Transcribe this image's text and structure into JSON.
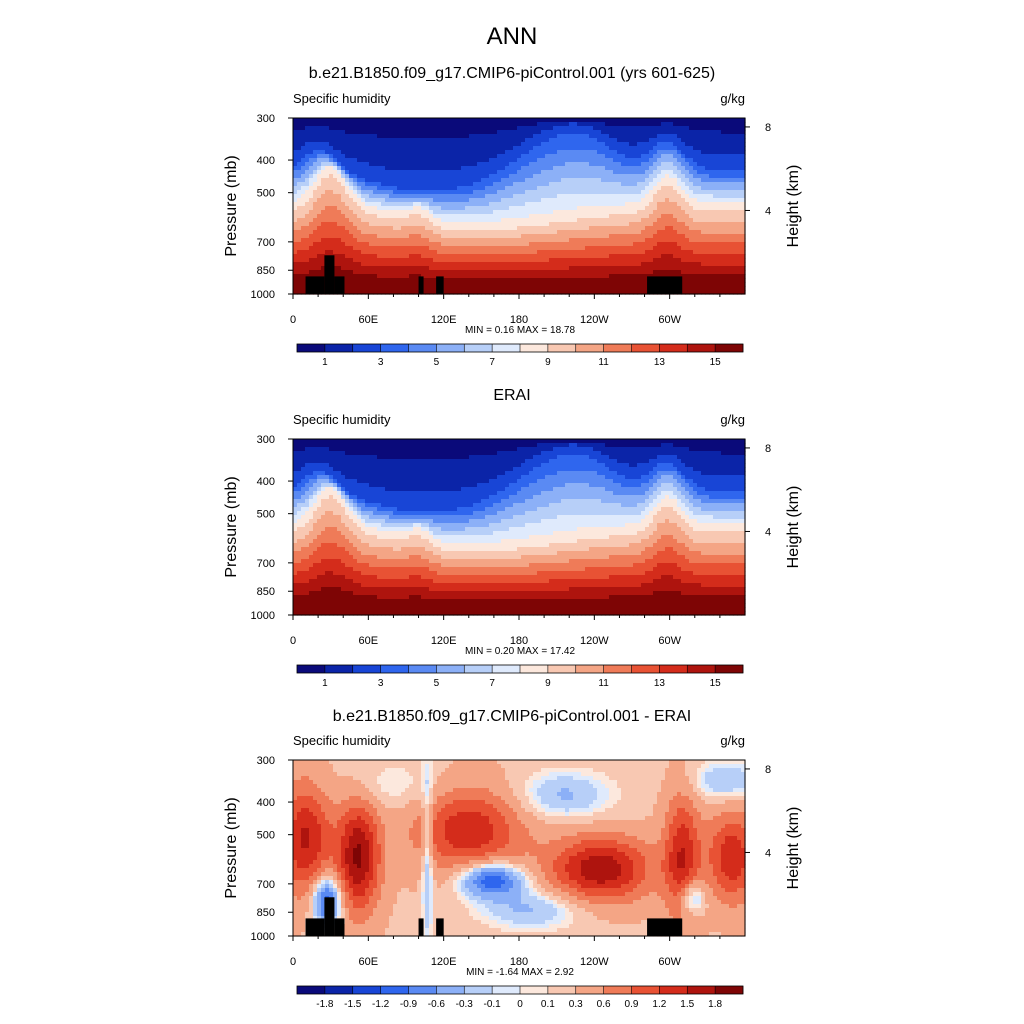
{
  "figure": {
    "title": "ANN"
  },
  "chart_data": [
    {
      "type": "heatmap",
      "panel": "model",
      "title": "b.e21.B1850.f09_g17.CMIP6-piControl.001 (yrs 601-625)",
      "left_label": "Specific humidity",
      "right_label": "g/kg",
      "ylabel": "Pressure (mb)",
      "ylabel_right": "Height (km)",
      "x_ticks": [
        "0",
        "60E",
        "120E",
        "180",
        "120W",
        "60W"
      ],
      "x_tick_values": [
        0,
        60,
        120,
        180,
        240,
        300
      ],
      "xlim": [
        0,
        360
      ],
      "y_ticks": [
        "300",
        "400",
        "500",
        "700",
        "850",
        "1000"
      ],
      "y_tick_values": [
        300,
        400,
        500,
        700,
        850,
        1000
      ],
      "ylim": [
        1000,
        300
      ],
      "y_scale": "log",
      "height_ticks": [
        "8",
        "4"
      ],
      "height_tick_values": [
        8,
        4
      ],
      "min_text": "MIN =   0.16  MAX =  18.78",
      "min": 0.16,
      "max": 18.78,
      "colorbar": {
        "labels": [
          "1",
          "3",
          "5",
          "7",
          "9",
          "11",
          "13",
          "15"
        ],
        "label_values": [
          1,
          3,
          5,
          7,
          9,
          11,
          13,
          15
        ],
        "levels": [
          1,
          2,
          3,
          4,
          5,
          6,
          7,
          8,
          9,
          10,
          11,
          12,
          13,
          14,
          15
        ],
        "colors": [
          "#0a0a7a",
          "#0b24a8",
          "#1845d6",
          "#2f66ee",
          "#5a8af3",
          "#8cb0f7",
          "#b7cff8",
          "#dfeafc",
          "#fce8dd",
          "#f8c8b2",
          "#f4a585",
          "#ef7b58",
          "#e85234",
          "#d42c1b",
          "#ae140e",
          "#7e0505"
        ]
      },
      "topography": true
    },
    {
      "type": "heatmap",
      "panel": "obs",
      "title": "ERAI",
      "left_label": "Specific humidity",
      "right_label": "g/kg",
      "ylabel": "Pressure (mb)",
      "ylabel_right": "Height (km)",
      "x_ticks": [
        "0",
        "60E",
        "120E",
        "180",
        "120W",
        "60W"
      ],
      "x_tick_values": [
        0,
        60,
        120,
        180,
        240,
        300
      ],
      "xlim": [
        0,
        360
      ],
      "y_ticks": [
        "300",
        "400",
        "500",
        "700",
        "850",
        "1000"
      ],
      "y_tick_values": [
        300,
        400,
        500,
        700,
        850,
        1000
      ],
      "ylim": [
        1000,
        300
      ],
      "y_scale": "log",
      "height_ticks": [
        "8",
        "4"
      ],
      "height_tick_values": [
        8,
        4
      ],
      "min_text": "MIN =   0.20  MAX =  17.42",
      "min": 0.2,
      "max": 17.42,
      "colorbar": {
        "labels": [
          "1",
          "3",
          "5",
          "7",
          "9",
          "11",
          "13",
          "15"
        ],
        "label_values": [
          1,
          3,
          5,
          7,
          9,
          11,
          13,
          15
        ],
        "levels": [
          1,
          2,
          3,
          4,
          5,
          6,
          7,
          8,
          9,
          10,
          11,
          12,
          13,
          14,
          15
        ],
        "colors": [
          "#0a0a7a",
          "#0b24a8",
          "#1845d6",
          "#2f66ee",
          "#5a8af3",
          "#8cb0f7",
          "#b7cff8",
          "#dfeafc",
          "#fce8dd",
          "#f8c8b2",
          "#f4a585",
          "#ef7b58",
          "#e85234",
          "#d42c1b",
          "#ae140e",
          "#7e0505"
        ]
      },
      "topography": false
    },
    {
      "type": "heatmap",
      "panel": "diff",
      "title": "b.e21.B1850.f09_g17.CMIP6-piControl.001 - ERAI",
      "left_label": "Specific humidity",
      "right_label": "g/kg",
      "ylabel": "Pressure (mb)",
      "ylabel_right": "Height (km)",
      "x_ticks": [
        "0",
        "60E",
        "120E",
        "180",
        "120W",
        "60W"
      ],
      "x_tick_values": [
        0,
        60,
        120,
        180,
        240,
        300
      ],
      "xlim": [
        0,
        360
      ],
      "y_ticks": [
        "300",
        "400",
        "500",
        "700",
        "850",
        "1000"
      ],
      "y_tick_values": [
        300,
        400,
        500,
        700,
        850,
        1000
      ],
      "ylim": [
        1000,
        300
      ],
      "y_scale": "log",
      "height_ticks": [
        "8",
        "4"
      ],
      "height_tick_values": [
        8,
        4
      ],
      "min_text": "MIN =  -1.64  MAX =   2.92",
      "min": -1.64,
      "max": 2.92,
      "colorbar": {
        "labels": [
          "-1.8",
          "-1.5",
          "-1.2",
          "-0.9",
          "-0.6",
          "-0.3",
          "-0.1",
          "0",
          "0.1",
          "0.3",
          "0.6",
          "0.9",
          "1.2",
          "1.5",
          "1.8"
        ],
        "label_values": [
          -1.8,
          -1.5,
          -1.2,
          -0.9,
          -0.6,
          -0.3,
          -0.1,
          0,
          0.1,
          0.3,
          0.6,
          0.9,
          1.2,
          1.5,
          1.8
        ],
        "levels": [
          -1.8,
          -1.5,
          -1.2,
          -0.9,
          -0.6,
          -0.3,
          -0.1,
          0,
          0.1,
          0.3,
          0.6,
          0.9,
          1.2,
          1.5,
          1.8
        ],
        "colors": [
          "#0a0a7a",
          "#0b24a8",
          "#1845d6",
          "#2f66ee",
          "#5a8af3",
          "#8cb0f7",
          "#b7cff8",
          "#dfeafc",
          "#fce8dd",
          "#f8c8b2",
          "#f4a585",
          "#ef7b58",
          "#e85234",
          "#d42c1b",
          "#ae140e",
          "#7e0505"
        ]
      },
      "topography": true
    }
  ]
}
